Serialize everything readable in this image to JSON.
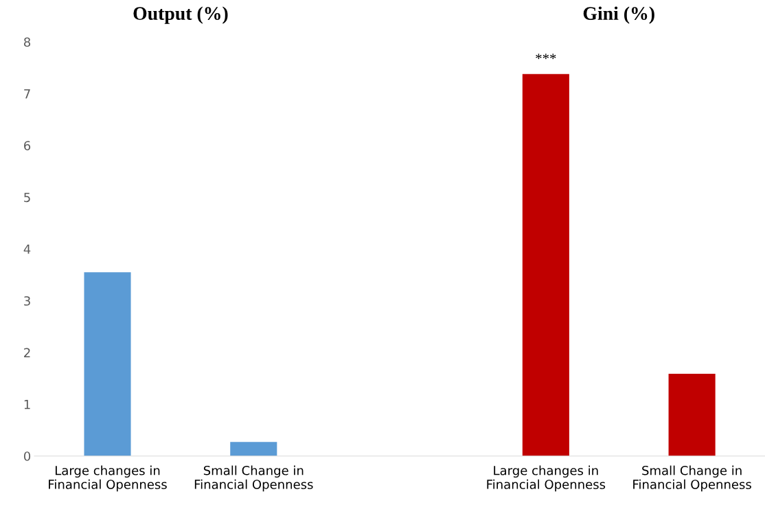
{
  "chart_data": {
    "type": "bar",
    "categories": [
      "Large changes in\nFinancial Openness",
      "Small Change in\nFinancial Openness",
      null,
      "Large changes in\nFinancial Openness",
      "Small Change in\nFinancial Openness"
    ],
    "values": [
      3.55,
      0.27,
      null,
      7.38,
      1.59
    ],
    "colors": [
      "#5b9bd5",
      "#5b9bd5",
      "#5b9bd5",
      "#c00000",
      "#c00000"
    ],
    "ylim": [
      0,
      8
    ],
    "yticks": [
      0,
      1,
      2,
      3,
      4,
      5,
      6,
      7,
      8
    ],
    "grid": false,
    "legend": false,
    "annotations": [
      "Output (%)",
      "Gini (%)",
      "***"
    ]
  }
}
